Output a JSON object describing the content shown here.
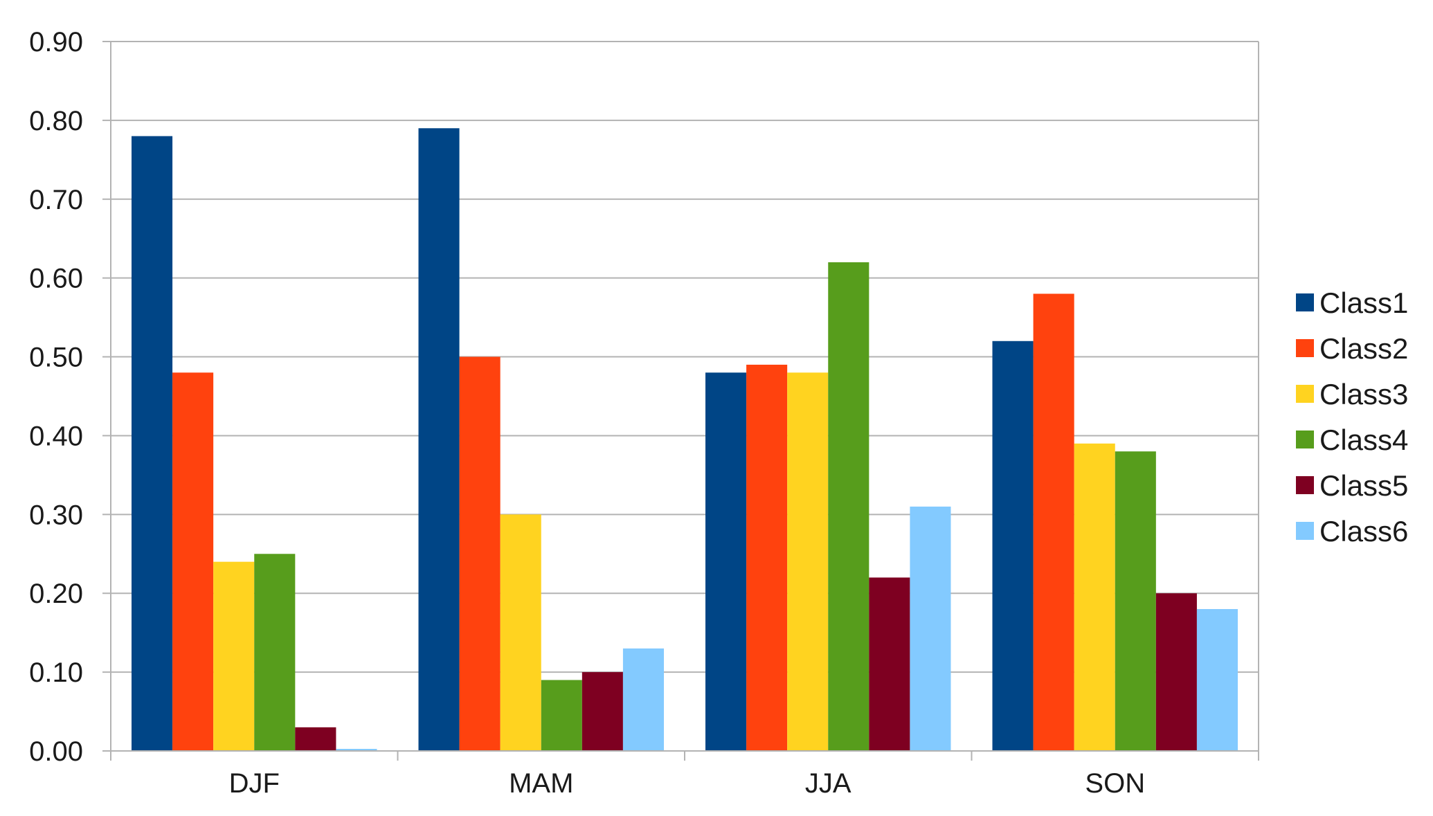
{
  "chart_data": {
    "type": "bar",
    "categories": [
      "DJF",
      "MAM",
      "JJA",
      "SON"
    ],
    "series": [
      {
        "name": "Class1",
        "color": "#004586",
        "values": [
          0.78,
          0.79,
          0.48,
          0.52
        ]
      },
      {
        "name": "Class2",
        "color": "#ff420e",
        "values": [
          0.48,
          0.5,
          0.49,
          0.58
        ]
      },
      {
        "name": "Class3",
        "color": "#ffd320",
        "values": [
          0.24,
          0.3,
          0.48,
          0.39
        ]
      },
      {
        "name": "Class4",
        "color": "#579d1c",
        "values": [
          0.25,
          0.09,
          0.62,
          0.38
        ]
      },
      {
        "name": "Class5",
        "color": "#7e0021",
        "values": [
          0.03,
          0.1,
          0.22,
          0.2
        ]
      },
      {
        "name": "Class6",
        "color": "#83caff",
        "values": [
          0.0,
          0.13,
          0.31,
          0.18
        ]
      }
    ],
    "ylim": [
      0,
      0.9
    ],
    "yticks": [
      "0.00",
      "0.10",
      "0.20",
      "0.30",
      "0.40",
      "0.50",
      "0.60",
      "0.70",
      "0.80",
      "0.90"
    ],
    "grid": true,
    "legend_position": "right",
    "title": "",
    "xlabel": "",
    "ylabel": ""
  }
}
